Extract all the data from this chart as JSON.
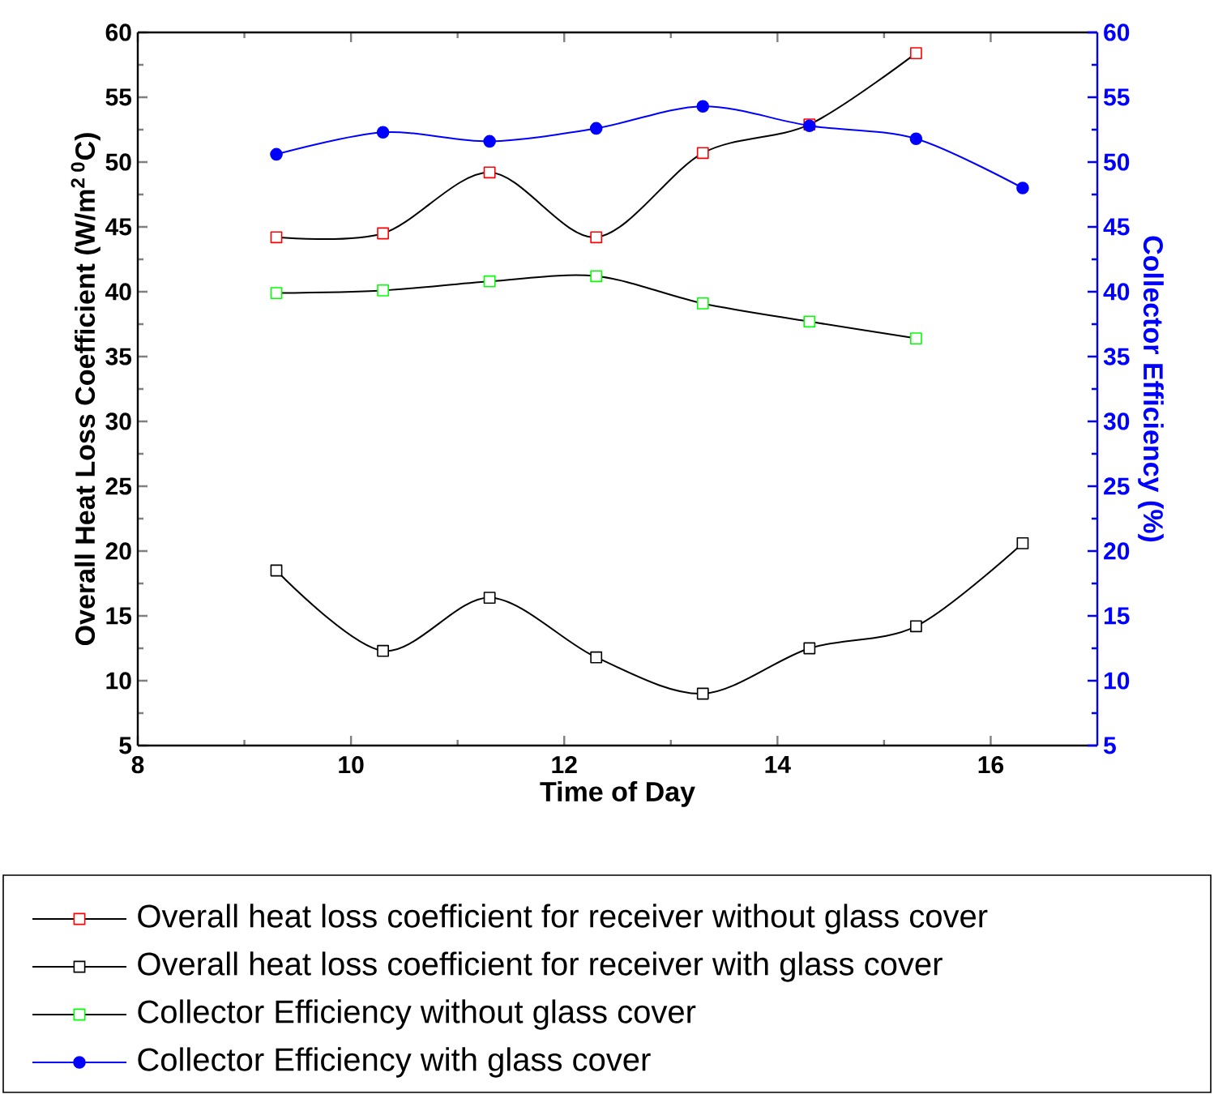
{
  "chart_data": {
    "type": "line",
    "xlabel": "Time of Day",
    "ylabel": "Overall Heat Loss Coefficient (W/m$^{2 0}$C)",
    "y2label": "Collector Efficiency (%)",
    "xlim": [
      8,
      17
    ],
    "xticks": [
      8,
      10,
      12,
      14,
      16
    ],
    "ylim": [
      5,
      60
    ],
    "yticks": [
      5,
      10,
      15,
      20,
      25,
      30,
      35,
      40,
      45,
      50,
      55,
      60
    ],
    "y2lim": [
      5,
      60
    ],
    "y2ticks": [
      5,
      10,
      15,
      20,
      25,
      30,
      35,
      40,
      45,
      50,
      55,
      60
    ],
    "legend": "bottom",
    "grid": false,
    "series": [
      {
        "name": "Overall heat loss coefficient for receiver without glass cover",
        "color": "#ff0000",
        "marker": "square",
        "x": [
          9.3,
          10.3,
          11.3,
          12.3,
          13.3,
          14.3,
          15.3
        ],
        "values": [
          44.2,
          44.5,
          49.2,
          44.2,
          50.7,
          52.9,
          58.4
        ]
      },
      {
        "name": "Overall heat loss coefficient for receiver with glass cover",
        "color": "#000000",
        "marker": "square",
        "x": [
          9.3,
          10.3,
          11.3,
          12.3,
          13.3,
          14.3,
          15.3,
          16.3
        ],
        "values": [
          18.5,
          12.3,
          16.4,
          11.8,
          9.0,
          12.5,
          14.2,
          20.6
        ]
      },
      {
        "name": "Collector Efficiency without glass cover",
        "color": "#00ff00",
        "marker": "square",
        "x": [
          9.3,
          10.3,
          11.3,
          12.3,
          13.3,
          14.3,
          15.3
        ],
        "values": [
          39.9,
          40.1,
          40.8,
          41.2,
          39.1,
          37.7,
          36.4
        ]
      },
      {
        "name": "Collector Efficiency with glass cover",
        "color": "#0000ff",
        "marker": "circle",
        "axis": "y2",
        "x": [
          9.3,
          10.3,
          11.3,
          12.3,
          13.3,
          14.3,
          15.3,
          16.3
        ],
        "values": [
          50.6,
          52.3,
          51.6,
          52.6,
          54.3,
          52.8,
          51.8,
          48.0
        ]
      }
    ]
  }
}
